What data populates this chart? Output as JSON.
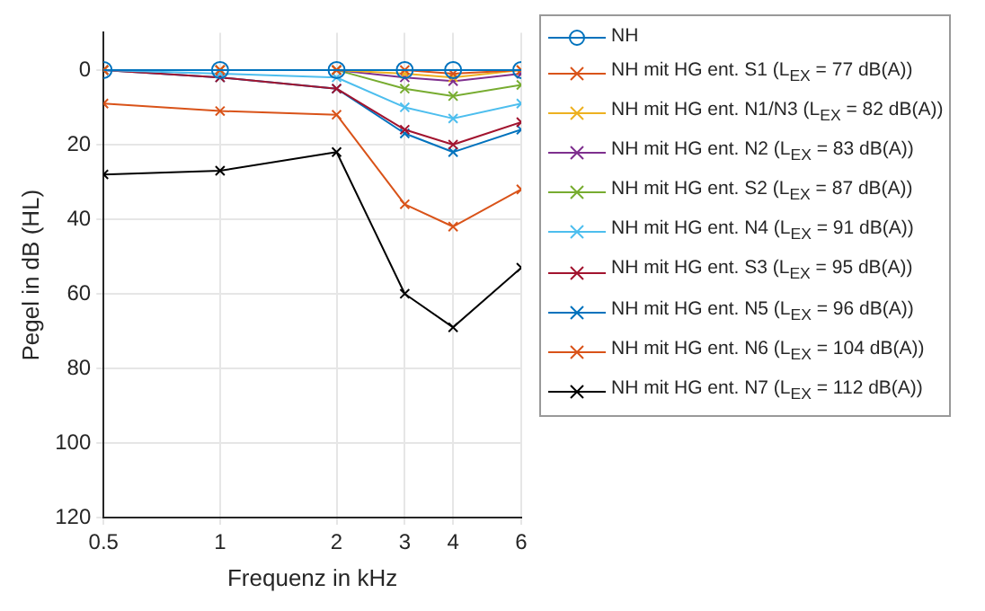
{
  "chart_data": {
    "type": "line",
    "xlabel": "Frequenz in kHz",
    "ylabel": "Pegel in dB (HL)",
    "x": [
      0.5,
      1,
      2,
      3,
      4,
      6
    ],
    "log": "x",
    "xlim": [
      0.5,
      6
    ],
    "xticks": [
      0.5,
      1,
      2,
      3,
      4,
      6
    ],
    "ylim": [
      120,
      -10
    ],
    "yticks": [
      0,
      20,
      40,
      60,
      80,
      100,
      120
    ],
    "grid": true,
    "legend": "right",
    "series": [
      {
        "name": "NH",
        "color": "#0072bd",
        "marker": "circle",
        "values": [
          0,
          0,
          0,
          0,
          0,
          0
        ]
      },
      {
        "name": "NH mit HG ent. S1 (L$_{EX}$ = 77 dB(A))",
        "color": "#d95319",
        "marker": "cross",
        "values": [
          0,
          0,
          0,
          0,
          1,
          0
        ]
      },
      {
        "name": "NH mit HG ent. N1/N3 (L$_{EX}$ = 82 dB(A))",
        "color": "#edb120",
        "marker": "cross",
        "values": [
          0,
          0,
          0,
          1,
          2,
          0
        ]
      },
      {
        "name": "NH mit HG ent. N2 (L$_{EX}$ = 83 dB(A))",
        "color": "#7e2f8e",
        "marker": "cross",
        "values": [
          0,
          0,
          0,
          2,
          3,
          1
        ]
      },
      {
        "name": "NH mit HG ent. S2 (L$_{EX}$ = 87 dB(A))",
        "color": "#77ac30",
        "marker": "cross",
        "values": [
          0,
          0,
          0,
          5,
          7,
          4
        ]
      },
      {
        "name": "NH mit HG ent. N4 (L$_{EX}$ = 91 dB(A))",
        "color": "#4dbeee",
        "marker": "cross",
        "values": [
          0,
          1,
          2,
          10,
          13,
          9
        ]
      },
      {
        "name": "NH mit HG ent. S3 (L$_{EX}$ = 95 dB(A))",
        "color": "#a2142f",
        "marker": "cross",
        "values": [
          0,
          2,
          5,
          16,
          20,
          14
        ]
      },
      {
        "name": "NH mit HG ent. N5 (L$_{EX}$ = 96 dB(A))",
        "color": "#0072bd",
        "marker": "cross",
        "values": [
          0,
          2,
          5,
          17,
          22,
          16
        ]
      },
      {
        "name": "NH mit HG ent. N6 (L$_{EX}$ = 104 dB(A))",
        "color": "#d95319",
        "marker": "cross",
        "values": [
          9,
          11,
          12,
          36,
          42,
          32
        ]
      },
      {
        "name": "NH mit HG ent. N7 (L$_{EX}$ = 112 dB(A))",
        "color": "#000000",
        "marker": "cross",
        "values": [
          28,
          27,
          22,
          60,
          69,
          53
        ]
      }
    ]
  }
}
